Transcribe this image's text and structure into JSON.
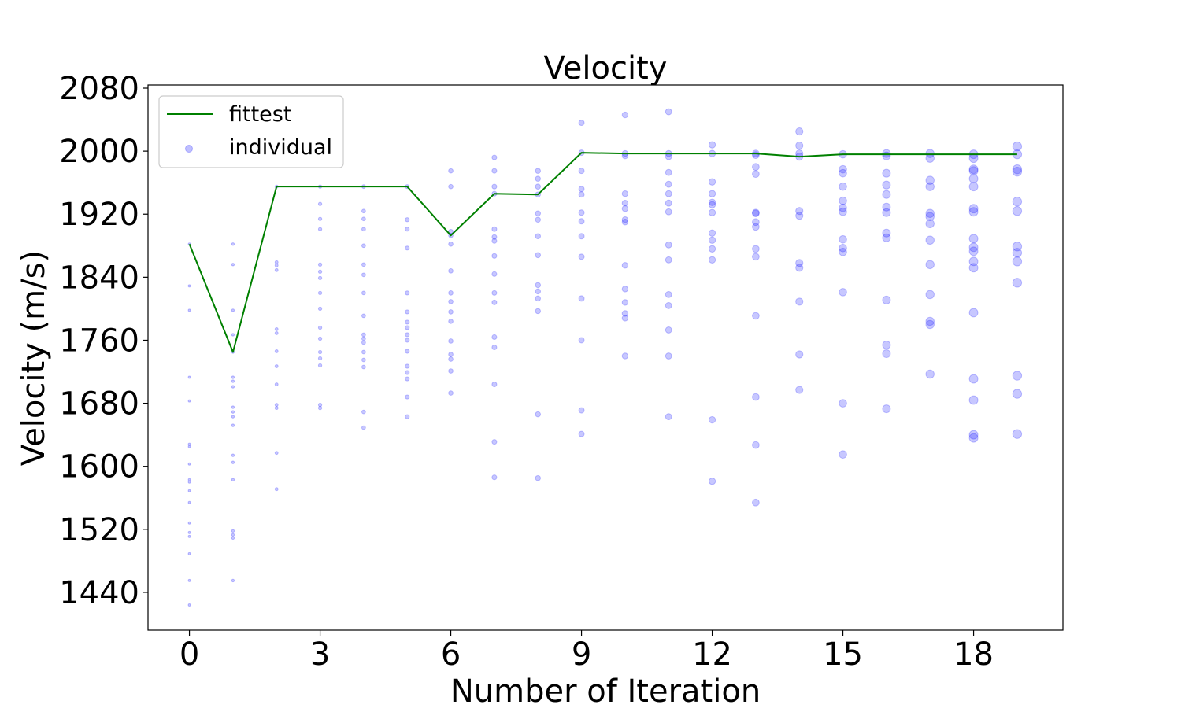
{
  "chart_data": {
    "type": "scatter",
    "title": "Velocity",
    "xlabel": "Number of Iteration",
    "ylabel": "Velocity (m/s)",
    "xlim": [
      -0.95,
      20.05
    ],
    "ylim": [
      1392,
      2084
    ],
    "xticks": [
      "0",
      "3",
      "6",
      "9",
      "12",
      "15",
      "18"
    ],
    "xtick_values": [
      0,
      3,
      6,
      9,
      12,
      15,
      18
    ],
    "yticks": [
      "1440",
      "1520",
      "1600",
      "1680",
      "1760",
      "1840",
      "1920",
      "2000",
      "2080"
    ],
    "ytick_values": [
      1440,
      1520,
      1600,
      1680,
      1760,
      1840,
      1920,
      2000,
      2080
    ],
    "grid": false,
    "legend": {
      "position": "top-left",
      "entries": [
        "fittest",
        "individual"
      ]
    },
    "colors": {
      "fittest": "#008000",
      "individual": "#0000ff"
    },
    "series": [
      {
        "name": "fittest",
        "type": "line",
        "x": [
          0,
          1,
          2,
          3,
          4,
          5,
          6,
          7,
          8,
          9,
          10,
          11,
          12,
          13,
          14,
          15,
          16,
          17,
          18,
          19
        ],
        "y": [
          1882,
          1745,
          1955,
          1955,
          1955,
          1955,
          1893,
          1946,
          1945,
          1998,
          1997,
          1997,
          1997,
          1997,
          1993,
          1996,
          1996,
          1996,
          1996,
          1996
        ]
      },
      {
        "name": "individual",
        "type": "scatter",
        "points": [
          [
            0,
            1882
          ],
          [
            0,
            1829
          ],
          [
            0,
            1798
          ],
          [
            0,
            1713
          ],
          [
            0,
            1683
          ],
          [
            0,
            1628
          ],
          [
            0,
            1625
          ],
          [
            0,
            1603
          ],
          [
            0,
            1583
          ],
          [
            0,
            1580
          ],
          [
            0,
            1569
          ],
          [
            0,
            1554
          ],
          [
            0,
            1528
          ],
          [
            0,
            1516
          ],
          [
            0,
            1511
          ],
          [
            0,
            1489
          ],
          [
            0,
            1455
          ],
          [
            0,
            1424
          ],
          [
            1,
            1882
          ],
          [
            1,
            1856
          ],
          [
            1,
            1798
          ],
          [
            1,
            1767
          ],
          [
            1,
            1745
          ],
          [
            1,
            1713
          ],
          [
            1,
            1708
          ],
          [
            1,
            1701
          ],
          [
            1,
            1675
          ],
          [
            1,
            1669
          ],
          [
            1,
            1663
          ],
          [
            1,
            1652
          ],
          [
            1,
            1614
          ],
          [
            1,
            1605
          ],
          [
            1,
            1583
          ],
          [
            1,
            1518
          ],
          [
            1,
            1513
          ],
          [
            1,
            1509
          ],
          [
            1,
            1455
          ],
          [
            2,
            1955
          ],
          [
            2,
            1859
          ],
          [
            2,
            1855
          ],
          [
            2,
            1849
          ],
          [
            2,
            1774
          ],
          [
            2,
            1769
          ],
          [
            2,
            1746
          ],
          [
            2,
            1727
          ],
          [
            2,
            1704
          ],
          [
            2,
            1678
          ],
          [
            2,
            1674
          ],
          [
            2,
            1617
          ],
          [
            2,
            1571
          ],
          [
            3,
            1955
          ],
          [
            3,
            1933
          ],
          [
            3,
            1914
          ],
          [
            3,
            1901
          ],
          [
            3,
            1856
          ],
          [
            3,
            1847
          ],
          [
            3,
            1839
          ],
          [
            3,
            1820
          ],
          [
            3,
            1800
          ],
          [
            3,
            1776
          ],
          [
            3,
            1762
          ],
          [
            3,
            1745
          ],
          [
            3,
            1737
          ],
          [
            3,
            1728
          ],
          [
            3,
            1678
          ],
          [
            3,
            1674
          ],
          [
            4,
            1955
          ],
          [
            4,
            1924
          ],
          [
            4,
            1914
          ],
          [
            4,
            1901
          ],
          [
            4,
            1880
          ],
          [
            4,
            1856
          ],
          [
            4,
            1843
          ],
          [
            4,
            1820
          ],
          [
            4,
            1791
          ],
          [
            4,
            1767
          ],
          [
            4,
            1762
          ],
          [
            4,
            1757
          ],
          [
            4,
            1745
          ],
          [
            4,
            1735
          ],
          [
            4,
            1726
          ],
          [
            4,
            1669
          ],
          [
            4,
            1649
          ],
          [
            5,
            1955
          ],
          [
            5,
            1913
          ],
          [
            5,
            1901
          ],
          [
            5,
            1877
          ],
          [
            5,
            1820
          ],
          [
            5,
            1796
          ],
          [
            5,
            1783
          ],
          [
            5,
            1776
          ],
          [
            5,
            1767
          ],
          [
            5,
            1760
          ],
          [
            5,
            1746
          ],
          [
            5,
            1727
          ],
          [
            5,
            1719
          ],
          [
            5,
            1711
          ],
          [
            5,
            1688
          ],
          [
            5,
            1663
          ],
          [
            6,
            1975
          ],
          [
            6,
            1955
          ],
          [
            6,
            1898
          ],
          [
            6,
            1893
          ],
          [
            6,
            1882
          ],
          [
            6,
            1848
          ],
          [
            6,
            1820
          ],
          [
            6,
            1809
          ],
          [
            6,
            1796
          ],
          [
            6,
            1784
          ],
          [
            6,
            1759
          ],
          [
            6,
            1742
          ],
          [
            6,
            1736
          ],
          [
            6,
            1721
          ],
          [
            6,
            1693
          ],
          [
            7,
            1992
          ],
          [
            7,
            1975
          ],
          [
            7,
            1955
          ],
          [
            7,
            1946
          ],
          [
            7,
            1901
          ],
          [
            7,
            1891
          ],
          [
            7,
            1886
          ],
          [
            7,
            1867
          ],
          [
            7,
            1844
          ],
          [
            7,
            1820
          ],
          [
            7,
            1808
          ],
          [
            7,
            1764
          ],
          [
            7,
            1751
          ],
          [
            7,
            1704
          ],
          [
            7,
            1631
          ],
          [
            7,
            1586
          ],
          [
            8,
            1975
          ],
          [
            8,
            1965
          ],
          [
            8,
            1955
          ],
          [
            8,
            1945
          ],
          [
            8,
            1921
          ],
          [
            8,
            1913
          ],
          [
            8,
            1892
          ],
          [
            8,
            1868
          ],
          [
            8,
            1830
          ],
          [
            8,
            1822
          ],
          [
            8,
            1813
          ],
          [
            8,
            1797
          ],
          [
            8,
            1666
          ],
          [
            8,
            1585
          ],
          [
            9,
            2036
          ],
          [
            9,
            1998
          ],
          [
            9,
            1975
          ],
          [
            9,
            1952
          ],
          [
            9,
            1945
          ],
          [
            9,
            1922
          ],
          [
            9,
            1911
          ],
          [
            9,
            1892
          ],
          [
            9,
            1866
          ],
          [
            9,
            1813
          ],
          [
            9,
            1760
          ],
          [
            9,
            1671
          ],
          [
            9,
            1641
          ],
          [
            10,
            2046
          ],
          [
            10,
            1997
          ],
          [
            10,
            1994
          ],
          [
            10,
            1946
          ],
          [
            10,
            1934
          ],
          [
            10,
            1927
          ],
          [
            10,
            1913
          ],
          [
            10,
            1910
          ],
          [
            10,
            1855
          ],
          [
            10,
            1825
          ],
          [
            10,
            1808
          ],
          [
            10,
            1794
          ],
          [
            10,
            1788
          ],
          [
            10,
            1740
          ],
          [
            11,
            2050
          ],
          [
            11,
            1997
          ],
          [
            11,
            1993
          ],
          [
            11,
            1973
          ],
          [
            11,
            1958
          ],
          [
            11,
            1946
          ],
          [
            11,
            1934
          ],
          [
            11,
            1923
          ],
          [
            11,
            1881
          ],
          [
            11,
            1862
          ],
          [
            11,
            1818
          ],
          [
            11,
            1804
          ],
          [
            11,
            1773
          ],
          [
            11,
            1740
          ],
          [
            11,
            1663
          ],
          [
            12,
            2008
          ],
          [
            12,
            1997
          ],
          [
            12,
            1961
          ],
          [
            12,
            1946
          ],
          [
            12,
            1935
          ],
          [
            12,
            1932
          ],
          [
            12,
            1922
          ],
          [
            12,
            1896
          ],
          [
            12,
            1887
          ],
          [
            12,
            1876
          ],
          [
            12,
            1862
          ],
          [
            12,
            1659
          ],
          [
            12,
            1581
          ],
          [
            13,
            1997
          ],
          [
            13,
            1995
          ],
          [
            13,
            1980
          ],
          [
            13,
            1971
          ],
          [
            13,
            1922
          ],
          [
            13,
            1921
          ],
          [
            13,
            1910
          ],
          [
            13,
            1904
          ],
          [
            13,
            1876
          ],
          [
            13,
            1866
          ],
          [
            13,
            1791
          ],
          [
            13,
            1688
          ],
          [
            13,
            1627
          ],
          [
            13,
            1554
          ],
          [
            14,
            2025
          ],
          [
            14,
            2007
          ],
          [
            14,
            1997
          ],
          [
            14,
            1993
          ],
          [
            14,
            1924
          ],
          [
            14,
            1918
          ],
          [
            14,
            1858
          ],
          [
            14,
            1852
          ],
          [
            14,
            1809
          ],
          [
            14,
            1742
          ],
          [
            14,
            1697
          ],
          [
            15,
            1996
          ],
          [
            15,
            1977
          ],
          [
            15,
            1972
          ],
          [
            15,
            1955
          ],
          [
            15,
            1937
          ],
          [
            15,
            1928
          ],
          [
            15,
            1923
          ],
          [
            15,
            1888
          ],
          [
            15,
            1877
          ],
          [
            15,
            1872
          ],
          [
            15,
            1821
          ],
          [
            15,
            1680
          ],
          [
            15,
            1615
          ],
          [
            16,
            1997
          ],
          [
            16,
            1994
          ],
          [
            16,
            1972
          ],
          [
            16,
            1957
          ],
          [
            16,
            1945
          ],
          [
            16,
            1929
          ],
          [
            16,
            1922
          ],
          [
            16,
            1896
          ],
          [
            16,
            1890
          ],
          [
            16,
            1811
          ],
          [
            16,
            1754
          ],
          [
            16,
            1743
          ],
          [
            16,
            1673
          ],
          [
            17,
            1997
          ],
          [
            17,
            1991
          ],
          [
            17,
            1963
          ],
          [
            17,
            1955
          ],
          [
            17,
            1921
          ],
          [
            17,
            1917
          ],
          [
            17,
            1908
          ],
          [
            17,
            1887
          ],
          [
            17,
            1856
          ],
          [
            17,
            1818
          ],
          [
            17,
            1784
          ],
          [
            17,
            1780
          ],
          [
            17,
            1717
          ],
          [
            18,
            1996
          ],
          [
            18,
            1991
          ],
          [
            18,
            1977
          ],
          [
            18,
            1975
          ],
          [
            18,
            1965
          ],
          [
            18,
            1955
          ],
          [
            18,
            1927
          ],
          [
            18,
            1923
          ],
          [
            18,
            1889
          ],
          [
            18,
            1878
          ],
          [
            18,
            1873
          ],
          [
            18,
            1860
          ],
          [
            18,
            1852
          ],
          [
            18,
            1795
          ],
          [
            18,
            1711
          ],
          [
            18,
            1684
          ],
          [
            18,
            1640
          ],
          [
            18,
            1636
          ],
          [
            19,
            2006
          ],
          [
            19,
            1996
          ],
          [
            19,
            1977
          ],
          [
            19,
            1974
          ],
          [
            19,
            1936
          ],
          [
            19,
            1924
          ],
          [
            19,
            1879
          ],
          [
            19,
            1871
          ],
          [
            19,
            1860
          ],
          [
            19,
            1833
          ],
          [
            19,
            1715
          ],
          [
            19,
            1692
          ],
          [
            19,
            1641
          ]
        ]
      }
    ]
  }
}
